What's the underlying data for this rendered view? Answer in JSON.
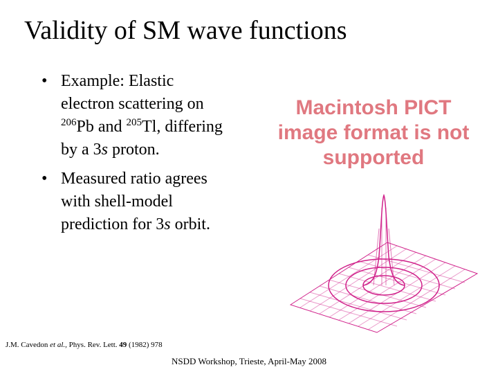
{
  "title": "Validity of SM wave functions",
  "bullets": [
    {
      "lines": [
        [
          "Example: Elastic"
        ],
        [
          "electron scattering on"
        ],
        [
          "206",
          "Pb and ",
          "205",
          "Tl, differing"
        ],
        [
          "by a 3",
          "s",
          " proton."
        ]
      ]
    },
    {
      "lines": [
        [
          "Measured ratio agrees"
        ],
        [
          "with shell-model"
        ],
        [
          "prediction for 3",
          "s",
          " orbit."
        ]
      ]
    }
  ],
  "image_placeholder": "Macintosh PICT image format is not supported",
  "citation": [
    "J.M. Cavedon ",
    "et al.",
    ", Phys. Rev. Lett. ",
    "49",
    " (1982) 978"
  ],
  "footer": "NSDD Workshop, Trieste, April-May 2008"
}
